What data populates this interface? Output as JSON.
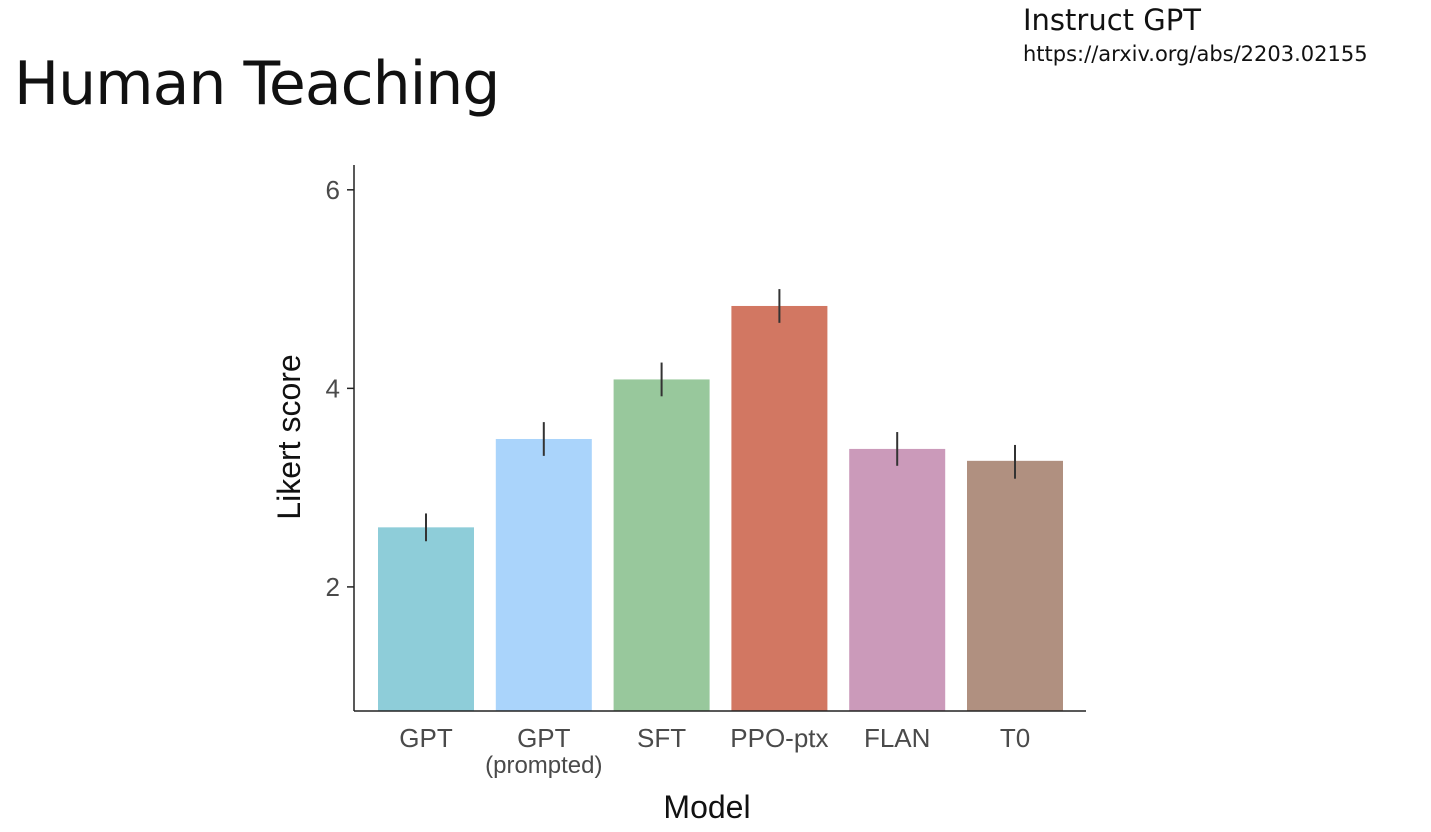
{
  "slide": {
    "title": "Human Teaching",
    "reference_title": "Instruct GPT",
    "reference_url": "https://arxiv.org/abs/2203.02155"
  },
  "chart_data": {
    "type": "bar",
    "categories": [
      "GPT",
      "GPT",
      "SFT",
      "PPO-ptx",
      "FLAN",
      "T0"
    ],
    "category_sublabels": [
      "",
      "(prompted)",
      "",
      "",
      "",
      ""
    ],
    "values": [
      2.6,
      3.49,
      4.09,
      4.83,
      3.39,
      3.27
    ],
    "error_low": [
      2.46,
      3.32,
      3.92,
      4.66,
      3.22,
      3.09
    ],
    "error_high": [
      2.74,
      3.66,
      4.26,
      5.0,
      3.56,
      3.43
    ],
    "colors": [
      "#8ecdd9",
      "#aad4fb",
      "#98c89c",
      "#d27762",
      "#cb9aba",
      "#b09080"
    ],
    "xlabel": "Model",
    "ylabel": "Likert score",
    "ylim": [
      0.75,
      6.25
    ],
    "yticks": [
      2,
      4,
      6
    ],
    "grid": false,
    "legend": "none"
  }
}
